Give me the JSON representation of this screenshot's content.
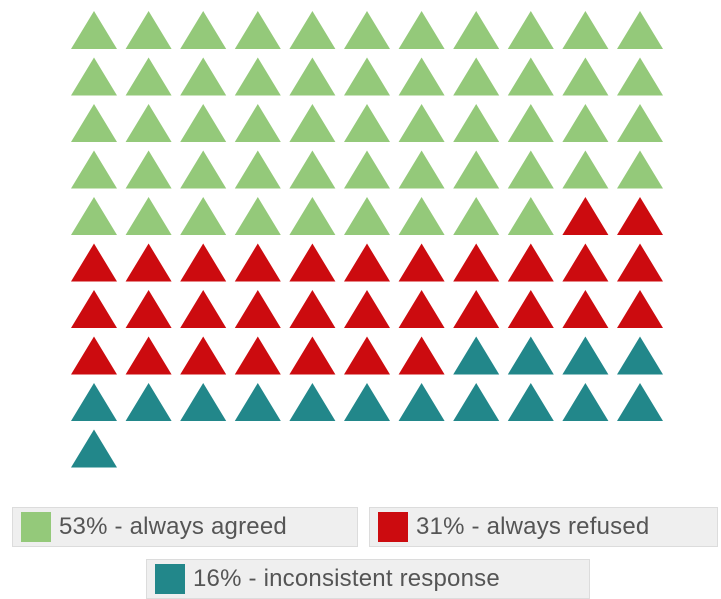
{
  "chart_data": {
    "type": "waffle",
    "title": "",
    "unit": "%",
    "total": 100,
    "columns": 11,
    "marker": "triangle",
    "categories": [
      {
        "label": "53% - always agreed",
        "value": 53,
        "color": "#94c97a"
      },
      {
        "label": "31% - always refused",
        "value": 31,
        "color": "#cc0b0f"
      },
      {
        "label": "16% - inconsistent response",
        "value": 16,
        "color": "#22878a"
      }
    ],
    "legend_position": "bottom"
  }
}
